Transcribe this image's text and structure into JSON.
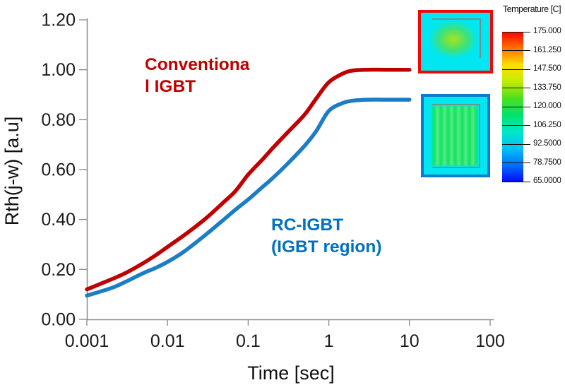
{
  "figure": {
    "background": "#ffffff"
  },
  "chart_data": {
    "type": "line",
    "title": "",
    "xlabel": "Time [sec]",
    "ylabel": "Rth(j-w) [a.u]",
    "x_scale": "log",
    "xlim": [
      0.001,
      100
    ],
    "ylim": [
      0.0,
      1.2
    ],
    "grid": false,
    "legend_position": "text-annotations-on-plot",
    "xticks": {
      "values": [
        0.001,
        0.01,
        0.1,
        1,
        10,
        100
      ],
      "labels": [
        "0.001",
        "0.01",
        "0.1",
        "1",
        "10",
        "100"
      ]
    },
    "yticks": {
      "values": [
        0.0,
        0.2,
        0.4,
        0.6,
        0.8,
        1.0,
        1.2
      ],
      "labels": [
        "0.00",
        "0.20",
        "0.40",
        "0.60",
        "0.80",
        "1.00",
        "1.20"
      ]
    },
    "series": [
      {
        "name": "Conventional IGBT",
        "color": "#c00000",
        "points": [
          [
            0.001,
            0.12
          ],
          [
            0.002,
            0.16
          ],
          [
            0.003,
            0.185
          ],
          [
            0.005,
            0.225
          ],
          [
            0.007,
            0.255
          ],
          [
            0.01,
            0.29
          ],
          [
            0.015,
            0.33
          ],
          [
            0.02,
            0.36
          ],
          [
            0.03,
            0.405
          ],
          [
            0.05,
            0.47
          ],
          [
            0.07,
            0.515
          ],
          [
            0.1,
            0.58
          ],
          [
            0.15,
            0.64
          ],
          [
            0.2,
            0.685
          ],
          [
            0.3,
            0.745
          ],
          [
            0.5,
            0.82
          ],
          [
            0.7,
            0.885
          ],
          [
            1.0,
            0.95
          ],
          [
            1.5,
            0.985
          ],
          [
            2.0,
            0.997
          ],
          [
            3.0,
            1.0
          ],
          [
            5.0,
            1.0
          ],
          [
            10.0,
            1.0
          ]
        ]
      },
      {
        "name": "RC-IGBT (IGBT region)",
        "color": "#1b7dc6",
        "points": [
          [
            0.001,
            0.095
          ],
          [
            0.002,
            0.125
          ],
          [
            0.003,
            0.15
          ],
          [
            0.005,
            0.185
          ],
          [
            0.007,
            0.205
          ],
          [
            0.01,
            0.23
          ],
          [
            0.015,
            0.265
          ],
          [
            0.02,
            0.295
          ],
          [
            0.03,
            0.34
          ],
          [
            0.05,
            0.4
          ],
          [
            0.07,
            0.44
          ],
          [
            0.1,
            0.48
          ],
          [
            0.15,
            0.53
          ],
          [
            0.2,
            0.565
          ],
          [
            0.3,
            0.62
          ],
          [
            0.5,
            0.695
          ],
          [
            0.7,
            0.755
          ],
          [
            1.0,
            0.835
          ],
          [
            1.5,
            0.867
          ],
          [
            2.0,
            0.876
          ],
          [
            3.0,
            0.88
          ],
          [
            5.0,
            0.88
          ],
          [
            10.0,
            0.88
          ]
        ]
      }
    ]
  },
  "labels": {
    "conventional": {
      "line1": "Conventiona",
      "line2": "l IGBT",
      "color": "#c00000"
    },
    "rc": {
      "line1": "RC-IGBT",
      "line2": "(IGBT region)",
      "color": "#0070c0"
    }
  },
  "insets": {
    "conventional": {
      "border": "#fa0206",
      "bg": "#00e7f2",
      "hot_center": "#a6e41c",
      "hot_mid": "#3fe178",
      "outline": "#6f8f95"
    },
    "rc": {
      "border": "#0e7bcd",
      "bg": "#00e7f2",
      "stripe_a": "#10e25e",
      "stripe_b": "#55ec86",
      "outline": "#6f8f95"
    }
  },
  "colorbar": {
    "title": "Temperature [C]",
    "ticks": [
      "175.000",
      "161.250",
      "147.500",
      "133.750",
      "120.000",
      "106.250",
      "92.5000",
      "78.7500",
      "65.0000"
    ],
    "gradient_top_to_bottom": [
      "#fc0303",
      "#ff7300",
      "#ffdf00",
      "#c3ec04",
      "#4ee01e",
      "#00e26a",
      "#00e7c9",
      "#00c2f4",
      "#0073fb",
      "#000cfe"
    ]
  }
}
